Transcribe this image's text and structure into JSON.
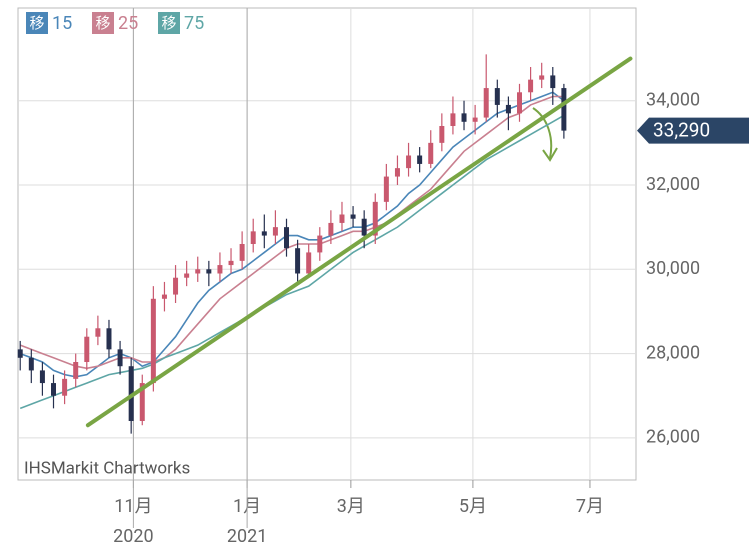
{
  "chart_data": {
    "type": "candlestick",
    "legend_icon": "移",
    "watermark": "IHSMarkit Chartworks",
    "xlim": [
      -0.2,
      55.5
    ],
    "ylim": [
      25000,
      36200
    ],
    "xticks": [
      {
        "value": 10.2,
        "label": "11月"
      },
      {
        "value": 20.45,
        "label": "1月"
      },
      {
        "value": 29.8,
        "label": "3月"
      },
      {
        "value": 40.8,
        "label": "5月"
      },
      {
        "value": 51.35,
        "label": "7月"
      }
    ],
    "x_year_labels": [
      {
        "value": 10.2,
        "label": "2020"
      },
      {
        "value": 20.45,
        "label": "2021"
      }
    ],
    "yticks": [
      {
        "value": 26000,
        "label": "26,000"
      },
      {
        "value": 28000,
        "label": "28,000"
      },
      {
        "value": 30000,
        "label": "30,000"
      },
      {
        "value": 32000,
        "label": "32,000"
      },
      {
        "value": 34000,
        "label": "34,000"
      }
    ],
    "grid": true,
    "up_color": "#c9586e",
    "down_color": "#26304f",
    "open": [
      28100,
      27900,
      27600,
      27300,
      27000,
      27400,
      27800,
      28400,
      28600,
      28100,
      27700,
      26400,
      27300,
      29300,
      29400,
      29800,
      29900,
      30000,
      29900,
      30100,
      30200,
      30600,
      30900,
      30800,
      31000,
      30500,
      29900,
      30400,
      30800,
      31100,
      31300,
      31200,
      30800,
      31600,
      32200,
      32400,
      32700,
      32500,
      33000,
      33400,
      33700,
      33500,
      33600,
      34300,
      33900,
      33700,
      34200,
      34500,
      34600,
      34300
    ],
    "high": [
      28300,
      28100,
      27800,
      27500,
      27600,
      28000,
      28600,
      28900,
      28800,
      28300,
      27900,
      27500,
      29600,
      29700,
      30100,
      30200,
      30300,
      30200,
      30400,
      30500,
      30900,
      31200,
      31300,
      31400,
      31200,
      30700,
      30600,
      31000,
      31400,
      31600,
      31500,
      31400,
      31800,
      32500,
      32700,
      33000,
      32900,
      33300,
      33700,
      34100,
      34000,
      33900,
      35100,
      34500,
      34100,
      34400,
      34800,
      34900,
      34800,
      34400
    ],
    "low": [
      27600,
      27300,
      27000,
      26700,
      26800,
      27200,
      27600,
      28200,
      27900,
      27500,
      26100,
      26300,
      27100,
      29000,
      29200,
      29600,
      29700,
      29600,
      29700,
      29900,
      30000,
      30400,
      30500,
      30600,
      30300,
      29700,
      29800,
      30200,
      30600,
      30900,
      31000,
      30500,
      30600,
      31400,
      32000,
      32200,
      32300,
      32400,
      32800,
      33200,
      33300,
      33200,
      33500,
      33600,
      33300,
      33500,
      34000,
      34300,
      33900,
      33100
    ],
    "close": [
      27900,
      27600,
      27300,
      27000,
      27400,
      27800,
      28400,
      28600,
      28100,
      27700,
      26400,
      27300,
      29300,
      29400,
      29800,
      29900,
      30000,
      29900,
      30100,
      30200,
      30600,
      30900,
      30800,
      31000,
      30500,
      29900,
      30400,
      30800,
      31100,
      31300,
      31200,
      30800,
      31600,
      32200,
      32400,
      32700,
      32500,
      33000,
      33400,
      33700,
      33500,
      33600,
      34300,
      33900,
      33700,
      34200,
      34500,
      34600,
      34300,
      33290
    ],
    "last_value_label": "33,290",
    "series": [
      {
        "name": "15",
        "color": "#4a86b8",
        "values": [
          28000,
          27900,
          27800,
          27600,
          27500,
          27450,
          27500,
          27700,
          27900,
          28000,
          27900,
          27700,
          27800,
          28100,
          28400,
          28800,
          29200,
          29500,
          29700,
          29900,
          30000,
          30200,
          30400,
          30600,
          30800,
          30800,
          30700,
          30700,
          30800,
          30900,
          31000,
          31000,
          31100,
          31300,
          31500,
          31800,
          32000,
          32300,
          32600,
          32900,
          33100,
          33300,
          33500,
          33700,
          33800,
          33900,
          34000,
          34100,
          34200,
          34000
        ]
      },
      {
        "name": "25",
        "color": "#c98090",
        "values": [
          28200,
          28100,
          28000,
          27900,
          27800,
          27700,
          27650,
          27700,
          27800,
          27900,
          27900,
          27800,
          27800,
          27900,
          28100,
          28400,
          28700,
          29000,
          29300,
          29500,
          29700,
          29900,
          30100,
          30300,
          30500,
          30600,
          30600,
          30600,
          30700,
          30800,
          30900,
          30900,
          31000,
          31100,
          31300,
          31500,
          31700,
          31900,
          32200,
          32500,
          32800,
          33000,
          33200,
          33400,
          33600,
          33700,
          33900,
          34000,
          34100,
          34100
        ]
      },
      {
        "name": "75",
        "color": "#5ea6a6",
        "values": [
          26700,
          26800,
          26900,
          27000,
          27100,
          27200,
          27300,
          27400,
          27500,
          27550,
          27600,
          27650,
          27750,
          27900,
          28000,
          28100,
          28200,
          28350,
          28500,
          28650,
          28800,
          28950,
          29100,
          29250,
          29400,
          29500,
          29600,
          29800,
          30000,
          30200,
          30400,
          30550,
          30700,
          30850,
          31000,
          31200,
          31400,
          31600,
          31800,
          32000,
          32200,
          32400,
          32600,
          32750,
          32900,
          33050,
          33200,
          33350,
          33500,
          33650
        ]
      }
    ],
    "trend_line": {
      "x": [
        6.1,
        55
      ],
      "y": [
        26300,
        35000
      ],
      "color": "#79a544"
    }
  }
}
